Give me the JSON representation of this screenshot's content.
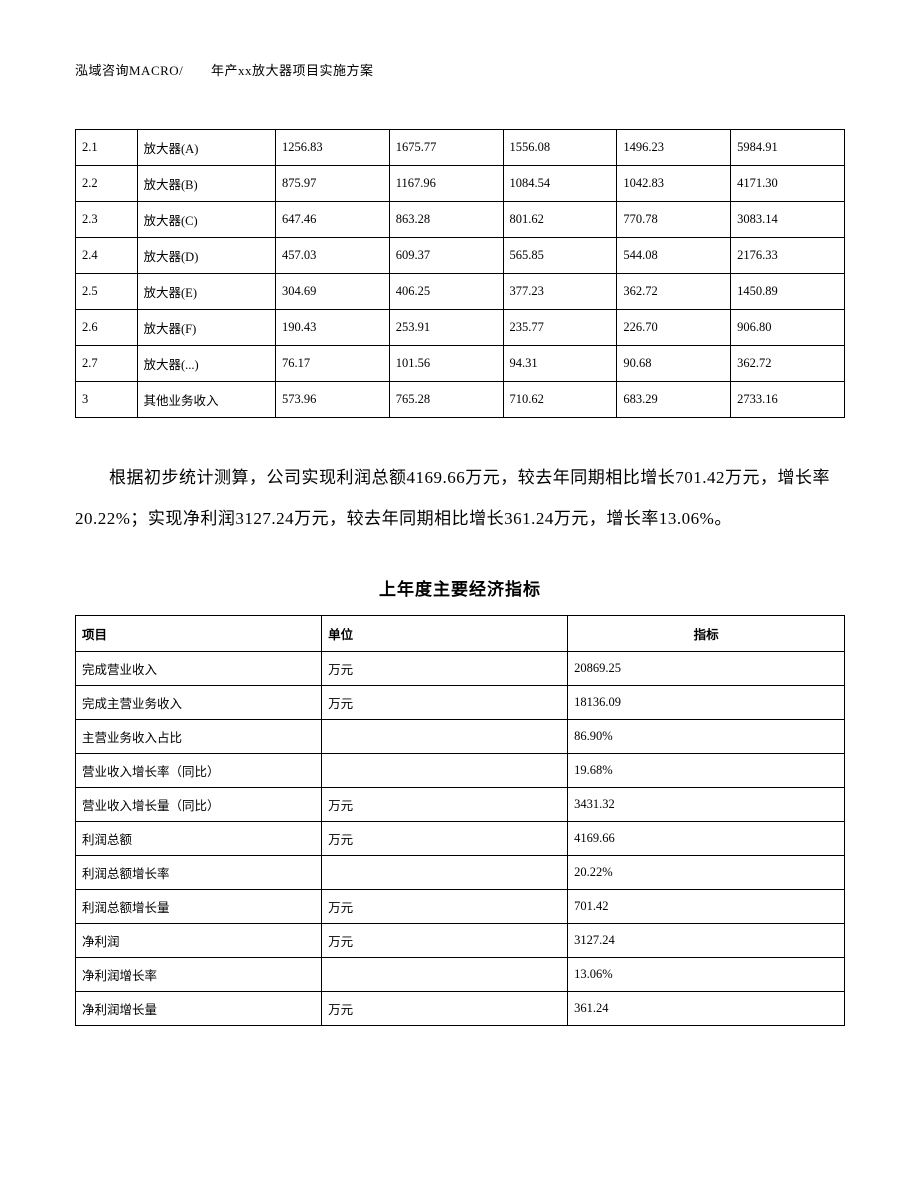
{
  "header": {
    "left": "泓域咨询MACRO/",
    "right": "年产xx放大器项目实施方案"
  },
  "table1": {
    "col_widths": [
      "8%",
      "18%",
      "14.8%",
      "14.8%",
      "14.8%",
      "14.8%",
      "14.8%"
    ],
    "border_color": "#000000",
    "font_size": 12.5,
    "rows": [
      [
        "2.1",
        "放大器(A)",
        "1256.83",
        "1675.77",
        "1556.08",
        "1496.23",
        "5984.91"
      ],
      [
        "2.2",
        "放大器(B)",
        "875.97",
        "1167.96",
        "1084.54",
        "1042.83",
        "4171.30"
      ],
      [
        "2.3",
        "放大器(C)",
        "647.46",
        "863.28",
        "801.62",
        "770.78",
        "3083.14"
      ],
      [
        "2.4",
        "放大器(D)",
        "457.03",
        "609.37",
        "565.85",
        "544.08",
        "2176.33"
      ],
      [
        "2.5",
        "放大器(E)",
        "304.69",
        "406.25",
        "377.23",
        "362.72",
        "1450.89"
      ],
      [
        "2.6",
        "放大器(F)",
        "190.43",
        "253.91",
        "235.77",
        "226.70",
        "906.80"
      ],
      [
        "2.7",
        "放大器(...)",
        "76.17",
        "101.56",
        "94.31",
        "90.68",
        "362.72"
      ],
      [
        "3",
        "其他业务收入",
        "573.96",
        "765.28",
        "710.62",
        "683.29",
        "2733.16"
      ]
    ]
  },
  "paragraph": "根据初步统计测算，公司实现利润总额4169.66万元，较去年同期相比增长701.42万元，增长率20.22%；实现净利润3127.24万元，较去年同期相比增长361.24万元，增长率13.06%。",
  "table2": {
    "title": "上年度主要经济指标",
    "border_color": "#000000",
    "font_size": 12.5,
    "headers": [
      "项目",
      "单位",
      "指标"
    ],
    "rows": [
      [
        "完成营业收入",
        "万元",
        "20869.25"
      ],
      [
        "完成主营业务收入",
        "万元",
        "18136.09"
      ],
      [
        "主营业务收入占比",
        "",
        "86.90%"
      ],
      [
        "营业收入增长率（同比）",
        "",
        "19.68%"
      ],
      [
        "营业收入增长量（同比）",
        "万元",
        "3431.32"
      ],
      [
        "利润总额",
        "万元",
        "4169.66"
      ],
      [
        "利润总额增长率",
        "",
        "20.22%"
      ],
      [
        "利润总额增长量",
        "万元",
        "701.42"
      ],
      [
        "净利润",
        "万元",
        "3127.24"
      ],
      [
        "净利润增长率",
        "",
        "13.06%"
      ],
      [
        "净利润增长量",
        "万元",
        "361.24"
      ]
    ]
  },
  "colors": {
    "background": "#ffffff",
    "text": "#000000",
    "border": "#000000"
  }
}
